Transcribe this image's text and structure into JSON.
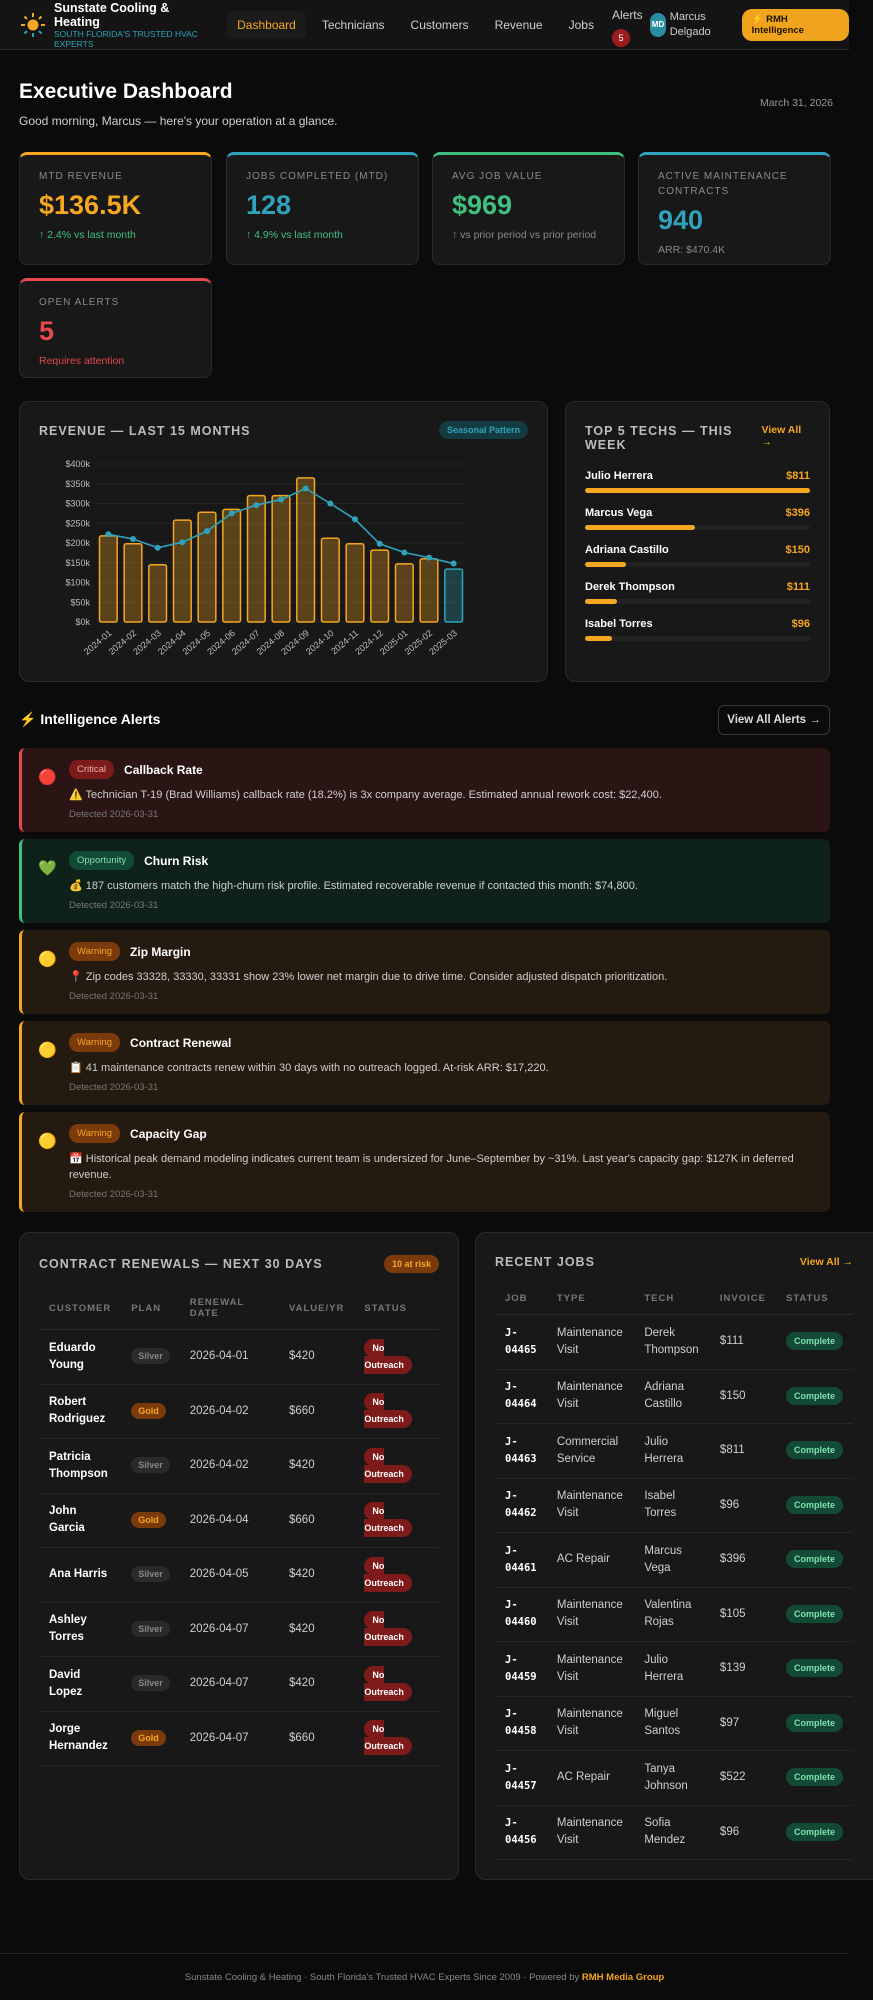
{
  "header": {
    "brand": "Sunstate Cooling & Heating",
    "tagline": "South Florida's Trusted HVAC Experts",
    "nav": [
      "Dashboard",
      "Technicians",
      "Customers",
      "Revenue",
      "Jobs"
    ],
    "alerts_label": "Alerts",
    "alerts_count": "5",
    "avatar": "MD",
    "user": "Marcus Delgado",
    "cta": "⚡ RMH Intelligence"
  },
  "page": {
    "title": "Executive Dashboard",
    "subtitle": "Good morning, Marcus — here's your operation at a glance.",
    "date": "March 31, 2026"
  },
  "kpis": [
    {
      "label": "MTD REVENUE",
      "value": "$136.5K",
      "delta": "↑ 2.4% vs last month",
      "color": "#f5a623",
      "dcolor": "#3fc07f"
    },
    {
      "label": "JOBS COMPLETED (MTD)",
      "value": "128",
      "delta": "↑ 4.9% vs last month",
      "color": "#2ea3bb",
      "dcolor": "#3fc07f"
    },
    {
      "label": "AVG JOB VALUE",
      "value": "$969",
      "delta": "↑ vs prior period vs prior period",
      "color": "#3fc07f",
      "dcolor": "#888888"
    },
    {
      "label": "ACTIVE MAINTENANCE CONTRACTS",
      "value": "940",
      "delta": "ARR: $470.4K",
      "color": "#2ea3bb",
      "dcolor": "#888888"
    },
    {
      "label": "OPEN ALERTS",
      "value": "5",
      "delta": "Requires attention",
      "color": "#e5484d",
      "dcolor": "#e5484d"
    }
  ],
  "chart_data": {
    "type": "bar",
    "title": "REVENUE — LAST 15 MONTHS",
    "badge": "Seasonal Pattern",
    "categories": [
      "2024-01",
      "2024-02",
      "2024-03",
      "2024-04",
      "2024-05",
      "2024-06",
      "2024-07",
      "2024-08",
      "2024-09",
      "2024-10",
      "2024-11",
      "2024-12",
      "2025-01",
      "2025-02",
      "2025-03"
    ],
    "series": [
      {
        "type": "bar",
        "values": [
          218000,
          198000,
          145000,
          258000,
          278000,
          285000,
          320000,
          320000,
          365000,
          212000,
          198000,
          182000,
          147000,
          160000,
          134000
        ],
        "color": "#f5a623",
        "last_color": "#2ea3bb"
      },
      {
        "type": "line",
        "values": [
          222000,
          210000,
          188000,
          202000,
          230000,
          275000,
          296000,
          310000,
          338000,
          300000,
          260000,
          198000,
          176000,
          163000,
          148000
        ],
        "color": "#2ea3bb"
      }
    ],
    "yticks": [
      "$0k",
      "$50k",
      "$100k",
      "$150k",
      "$200k",
      "$250k",
      "$300k",
      "$350k",
      "$400k"
    ],
    "ylim": [
      0,
      400000
    ],
    "grid": true
  },
  "techs": {
    "title": "TOP 5 TECHS — THIS WEEK",
    "view_all": "View All →",
    "items": [
      {
        "name": "Julio Herrera",
        "value": "$811",
        "pct": 100
      },
      {
        "name": "Marcus Vega",
        "value": "$396",
        "pct": 49
      },
      {
        "name": "Adriana Castillo",
        "value": "$150",
        "pct": 18
      },
      {
        "name": "Derek Thompson",
        "value": "$111",
        "pct": 14
      },
      {
        "name": "Isabel Torres",
        "value": "$96",
        "pct": 12
      }
    ]
  },
  "alerts": {
    "title": "⚡ Intelligence Alerts",
    "view_all": "View All Alerts →",
    "items": [
      {
        "icon": "🔴",
        "tag": "Critical",
        "title": "Callback Rate",
        "msg": "⚠️ Technician T-19 (Brad Williams) callback rate (18.2%) is 3x company average. Estimated annual rework cost: $22,400.",
        "detected": "Detected 2026-03-31",
        "kind": "crit"
      },
      {
        "icon": "💚",
        "tag": "Opportunity",
        "title": "Churn Risk",
        "msg": "💰 187 customers match the high-churn risk profile. Estimated recoverable revenue if contacted this month: $74,800.",
        "detected": "Detected 2026-03-31",
        "kind": "opp"
      },
      {
        "icon": "🟡",
        "tag": "Warning",
        "title": "Zip Margin",
        "msg": "📍 Zip codes 33328, 33330, 33331 show 23% lower net margin due to drive time. Consider adjusted dispatch prioritization.",
        "detected": "Detected 2026-03-31",
        "kind": "warn"
      },
      {
        "icon": "🟡",
        "tag": "Warning",
        "title": "Contract Renewal",
        "msg": "📋 41 maintenance contracts renew within 30 days with no outreach logged. At-risk ARR: $17,220.",
        "detected": "Detected 2026-03-31",
        "kind": "warn"
      },
      {
        "icon": "🟡",
        "tag": "Warning",
        "title": "Capacity Gap",
        "msg": "📅 Historical peak demand modeling indicates current team is undersized for June–September by ~31%. Last year's capacity gap: $127K in deferred revenue.",
        "detected": "Detected 2026-03-31",
        "kind": "warn"
      }
    ]
  },
  "renewals": {
    "title": "CONTRACT RENEWALS — NEXT 30 DAYS",
    "badge": "10 at risk",
    "columns": [
      "CUSTOMER",
      "PLAN",
      "RENEWAL DATE",
      "VALUE/YR",
      "STATUS"
    ],
    "rows": [
      [
        "Eduardo Young",
        "Silver",
        "2026-04-01",
        "$420",
        "No Outreach"
      ],
      [
        "Robert Rodriguez",
        "Gold",
        "2026-04-02",
        "$660",
        "No Outreach"
      ],
      [
        "Patricia Thompson",
        "Silver",
        "2026-04-02",
        "$420",
        "No Outreach"
      ],
      [
        "John Garcia",
        "Gold",
        "2026-04-04",
        "$660",
        "No Outreach"
      ],
      [
        "Ana Harris",
        "Silver",
        "2026-04-05",
        "$420",
        "No Outreach"
      ],
      [
        "Ashley Torres",
        "Silver",
        "2026-04-07",
        "$420",
        "No Outreach"
      ],
      [
        "David Lopez",
        "Silver",
        "2026-04-07",
        "$420",
        "No Outreach"
      ],
      [
        "Jorge Hernandez",
        "Gold",
        "2026-04-07",
        "$660",
        "No Outreach"
      ]
    ]
  },
  "jobs": {
    "title": "RECENT JOBS",
    "view_all": "View All →",
    "columns": [
      "JOB",
      "TYPE",
      "TECH",
      "INVOICE",
      "STATUS"
    ],
    "rows": [
      [
        "J-04465",
        "Maintenance Visit",
        "Derek Thompson",
        "$111",
        "Complete"
      ],
      [
        "J-04464",
        "Maintenance Visit",
        "Adriana Castillo",
        "$150",
        "Complete"
      ],
      [
        "J-04463",
        "Commercial Service",
        "Julio Herrera",
        "$811",
        "Complete"
      ],
      [
        "J-04462",
        "Maintenance Visit",
        "Isabel Torres",
        "$96",
        "Complete"
      ],
      [
        "J-04461",
        "AC Repair",
        "Marcus Vega",
        "$396",
        "Complete"
      ],
      [
        "J-04460",
        "Maintenance Visit",
        "Valentina Rojas",
        "$105",
        "Complete"
      ],
      [
        "J-04459",
        "Maintenance Visit",
        "Julio Herrera",
        "$139",
        "Complete"
      ],
      [
        "J-04458",
        "Maintenance Visit",
        "Miguel Santos",
        "$97",
        "Complete"
      ],
      [
        "J-04457",
        "AC Repair",
        "Tanya Johnson",
        "$522",
        "Complete"
      ],
      [
        "J-04456",
        "Maintenance Visit",
        "Sofia Mendez",
        "$96",
        "Complete"
      ]
    ]
  },
  "footer": {
    "text": "Sunstate Cooling & Heating  ·  South Florida's Trusted HVAC Experts Since 2009  ·  Powered by",
    "link": "RMH Media Group"
  }
}
